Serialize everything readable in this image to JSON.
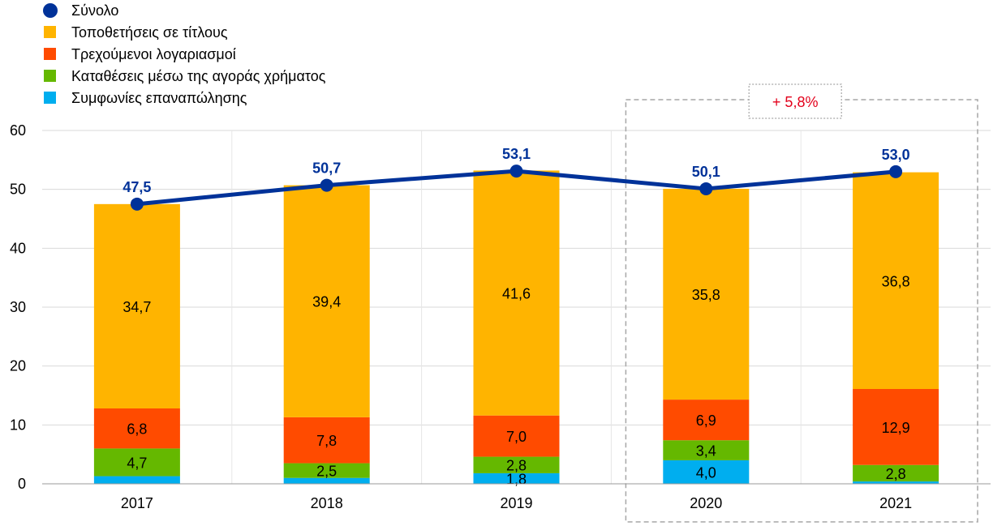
{
  "chart_data": {
    "type": "bar",
    "stacked": true,
    "categories": [
      "2017",
      "2018",
      "2019",
      "2020",
      "2021"
    ],
    "series": [
      {
        "name": "Συμφωνίες επαναπώλησης",
        "color": "#00AEEF",
        "values": [
          1.3,
          1.0,
          1.8,
          4.0,
          0.4
        ],
        "labels": [
          "",
          "",
          "1,8",
          "4,0",
          ""
        ]
      },
      {
        "name": "Καταθέσεις μέσω της αγοράς χρήματος",
        "color": "#65B800",
        "values": [
          4.7,
          2.5,
          2.8,
          3.4,
          2.8
        ],
        "labels": [
          "4,7",
          "2,5",
          "2,8",
          "3,4",
          "2,8"
        ]
      },
      {
        "name": "Τρεχούμενοι λογαριασμοί",
        "color": "#FF4B00",
        "values": [
          6.8,
          7.8,
          7.0,
          6.9,
          12.9
        ],
        "labels": [
          "6,8",
          "7,8",
          "7,0",
          "6,9",
          "12,9"
        ]
      },
      {
        "name": "Τοποθετήσεις σε τίτλους",
        "color": "#FFB400",
        "values": [
          34.7,
          39.4,
          41.6,
          35.8,
          36.8
        ],
        "labels": [
          "34,7",
          "39,4",
          "41,6",
          "35,8",
          "36,8"
        ]
      }
    ],
    "total": {
      "name": "Σύνολο",
      "color": "#003299",
      "values": [
        47.5,
        50.7,
        53.1,
        50.1,
        53.0
      ],
      "labels": [
        "47,5",
        "50,7",
        "53,1",
        "50,1",
        "53,0"
      ]
    },
    "legend_order": [
      "Σύνολο",
      "Τοποθετήσεις σε τίτλους",
      "Τρεχούμενοι λογαριασμοί",
      "Καταθέσεις μέσω της αγοράς χρήματος",
      "Συμφωνίες επαναπώλησης"
    ],
    "ylim": [
      0,
      60
    ],
    "yticks": [
      0,
      10,
      20,
      30,
      40,
      50,
      60
    ],
    "grid": true,
    "legend_position": "top-left",
    "annotation": {
      "text": "+ 5,8%",
      "color": "#E3001B",
      "spans": [
        "2020",
        "2021"
      ]
    }
  }
}
